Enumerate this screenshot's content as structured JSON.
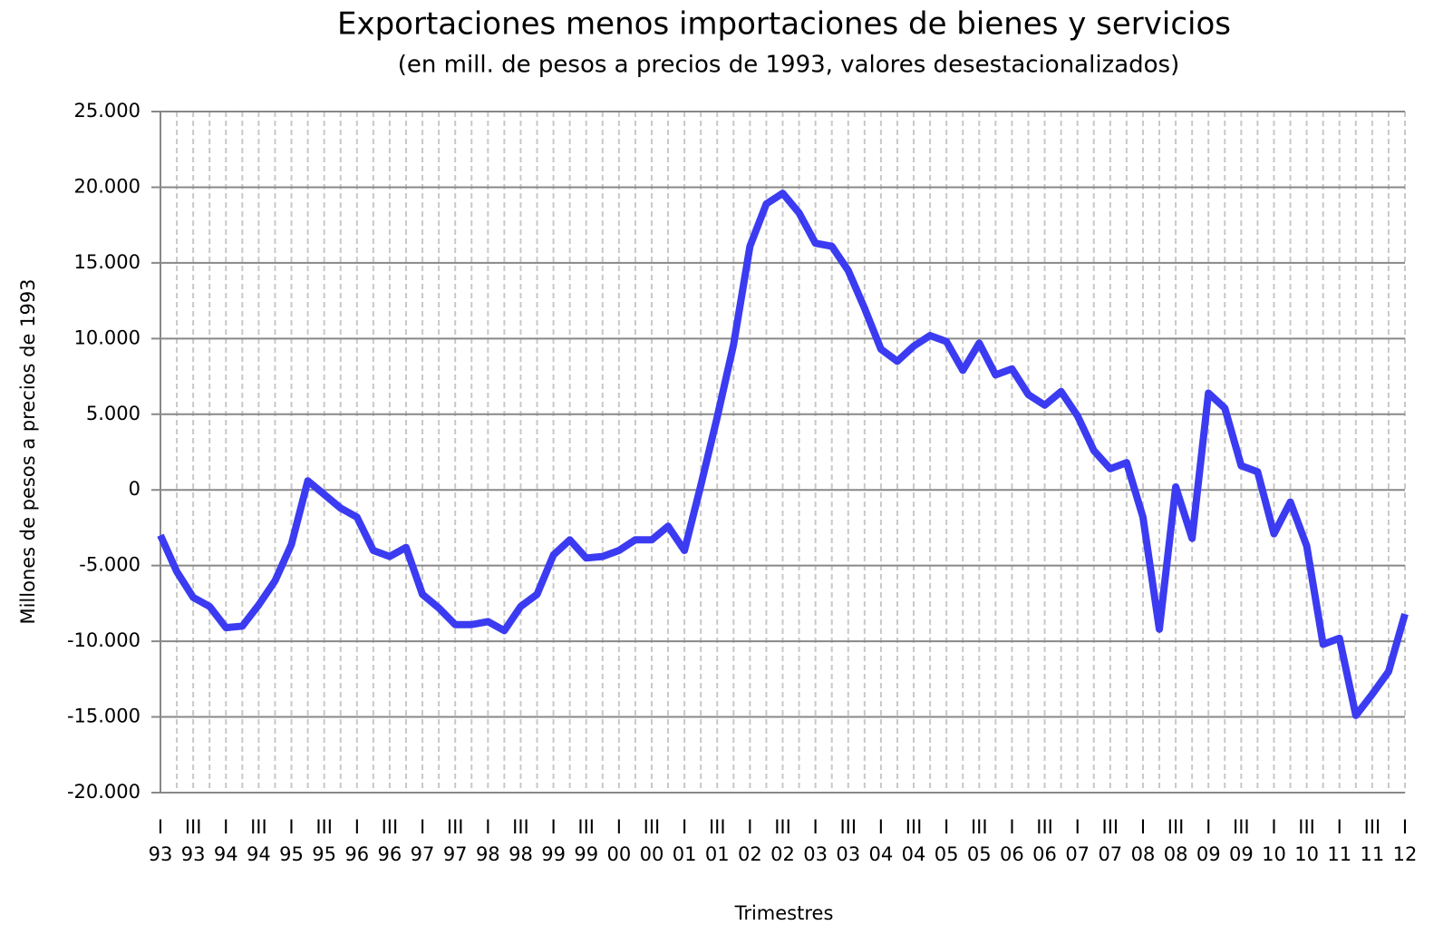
{
  "chart_data": {
    "type": "line",
    "title": "Exportaciones  menos importaciones de bienes y servicios",
    "subtitle": "(en mill. de pesos  a precios  de 1993, valores desestacionalizados)",
    "y_label": "Millones de pesos a precios de 1993",
    "x_label": "Trimestres",
    "categories": [
      {
        "quarter": "I",
        "year": "93"
      },
      null,
      {
        "quarter": "III",
        "year": "93"
      },
      null,
      {
        "quarter": "I",
        "year": "94"
      },
      null,
      {
        "quarter": "III",
        "year": "94"
      },
      null,
      {
        "quarter": "I",
        "year": "95"
      },
      null,
      {
        "quarter": "III",
        "year": "95"
      },
      null,
      {
        "quarter": "I",
        "year": "96"
      },
      null,
      {
        "quarter": "III",
        "year": "96"
      },
      null,
      {
        "quarter": "I",
        "year": "97"
      },
      null,
      {
        "quarter": "III",
        "year": "97"
      },
      null,
      {
        "quarter": "I",
        "year": "98"
      },
      null,
      {
        "quarter": "III",
        "year": "98"
      },
      null,
      {
        "quarter": "I",
        "year": "99"
      },
      null,
      {
        "quarter": "III",
        "year": "99"
      },
      null,
      {
        "quarter": "I",
        "year": "00"
      },
      null,
      {
        "quarter": "III",
        "year": "00"
      },
      null,
      {
        "quarter": "I",
        "year": "01"
      },
      null,
      {
        "quarter": "III",
        "year": "01"
      },
      null,
      {
        "quarter": "I",
        "year": "02"
      },
      null,
      {
        "quarter": "III",
        "year": "02"
      },
      null,
      {
        "quarter": "I",
        "year": "03"
      },
      null,
      {
        "quarter": "III",
        "year": "03"
      },
      null,
      {
        "quarter": "I",
        "year": "04"
      },
      null,
      {
        "quarter": "III",
        "year": "04"
      },
      null,
      {
        "quarter": "I",
        "year": "05"
      },
      null,
      {
        "quarter": "III",
        "year": "05"
      },
      null,
      {
        "quarter": "I",
        "year": "06"
      },
      null,
      {
        "quarter": "III",
        "year": "06"
      },
      null,
      {
        "quarter": "I",
        "year": "07"
      },
      null,
      {
        "quarter": "III",
        "year": "07"
      },
      null,
      {
        "quarter": "I",
        "year": "08"
      },
      null,
      {
        "quarter": "III",
        "year": "08"
      },
      null,
      {
        "quarter": "I",
        "year": "09"
      },
      null,
      {
        "quarter": "III",
        "year": "09"
      },
      null,
      {
        "quarter": "I",
        "year": "10"
      },
      null,
      {
        "quarter": "III",
        "year": "10"
      },
      null,
      {
        "quarter": "I",
        "year": "11"
      },
      null,
      {
        "quarter": "III",
        "year": "11"
      },
      null,
      {
        "quarter": "I",
        "year": "12"
      }
    ],
    "series": [
      {
        "color": "#3b3bf2",
        "values": [
          -3000,
          -5400,
          -7100,
          -7700,
          -9100,
          -9000,
          -7600,
          -6000,
          -3600,
          600,
          -300,
          -1200,
          -1800,
          -4000,
          -4400,
          -3800,
          -6900,
          -7800,
          -8900,
          -8900,
          -8700,
          -9300,
          -7700,
          -6900,
          -4300,
          -3300,
          -4500,
          -4400,
          -4000,
          -3300,
          -3300,
          -2400,
          -4000,
          300,
          4800,
          9600,
          16100,
          18900,
          19600,
          18300,
          16300,
          16100,
          14500,
          12000,
          9300,
          8500,
          9500,
          10200,
          9800,
          7900,
          9700,
          7600,
          8000,
          6300,
          5600,
          6500,
          4900,
          2600,
          1400,
          1800,
          -1800,
          -9200,
          200,
          -3200,
          6400,
          5400,
          1600,
          1200,
          -2900,
          -800,
          -3700,
          -10200,
          -9800,
          -14900,
          -13500,
          -12000,
          -8200
        ]
      }
    ],
    "ylim": [
      -20000,
      25000
    ],
    "yticks": [
      {
        "value": -20000,
        "label": "-20.000"
      },
      {
        "value": -15000,
        "label": "-15.000"
      },
      {
        "value": -10000,
        "label": "-10.000"
      },
      {
        "value": -5000,
        "label": "-5.000"
      },
      0,
      {
        "value": 5000,
        "label": "5.000"
      },
      {
        "value": 10000,
        "label": "10.000"
      },
      {
        "value": 15000,
        "label": "15.000"
      },
      {
        "value": 20000,
        "label": "20.000"
      },
      {
        "value": 25000,
        "label": "25.000"
      }
    ],
    "grid": true
  }
}
